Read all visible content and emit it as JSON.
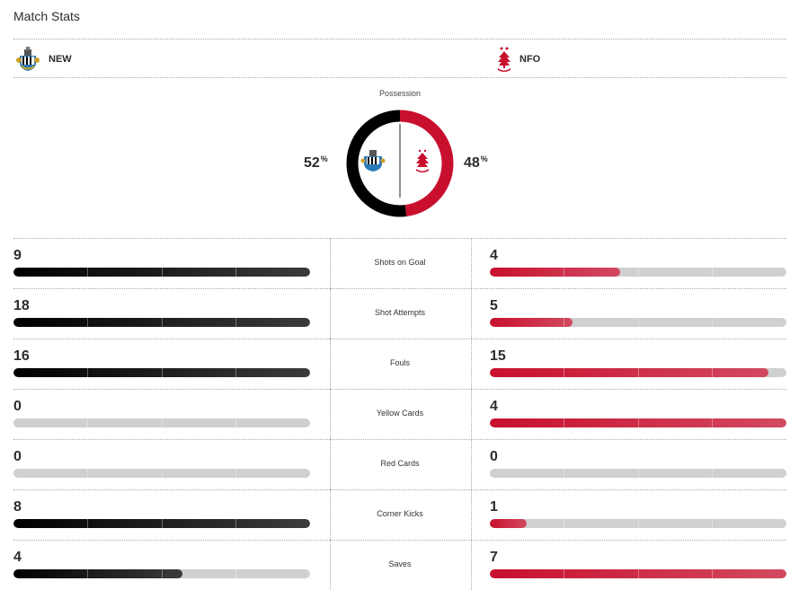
{
  "header": {
    "title": "Match Stats"
  },
  "teams": {
    "home": {
      "abbr": "NEW",
      "color": "#000000",
      "crest": "newcastle-crest-icon"
    },
    "away": {
      "abbr": "NFO",
      "color": "#c8102e",
      "crest": "forest-tree-crest-icon"
    }
  },
  "possession": {
    "label": "Possession",
    "home_pct": "52",
    "away_pct": "48",
    "home_value": 52,
    "away_value": 48,
    "unit": "%"
  },
  "stats": [
    {
      "label": "Shots on Goal",
      "home": "9",
      "away": "4",
      "home_fill": 1.0,
      "away_fill": 0.44
    },
    {
      "label": "Shot Attempts",
      "home": "18",
      "away": "5",
      "home_fill": 1.0,
      "away_fill": 0.28
    },
    {
      "label": "Fouls",
      "home": "16",
      "away": "15",
      "home_fill": 1.0,
      "away_fill": 0.94
    },
    {
      "label": "Yellow Cards",
      "home": "0",
      "away": "4",
      "home_fill": 0.0,
      "away_fill": 1.0
    },
    {
      "label": "Red Cards",
      "home": "0",
      "away": "0",
      "home_fill": 0.0,
      "away_fill": 0.0
    },
    {
      "label": "Corner Kicks",
      "home": "8",
      "away": "1",
      "home_fill": 1.0,
      "away_fill": 0.125
    },
    {
      "label": "Saves",
      "home": "4",
      "away": "7",
      "home_fill": 0.57,
      "away_fill": 1.0
    }
  ]
}
